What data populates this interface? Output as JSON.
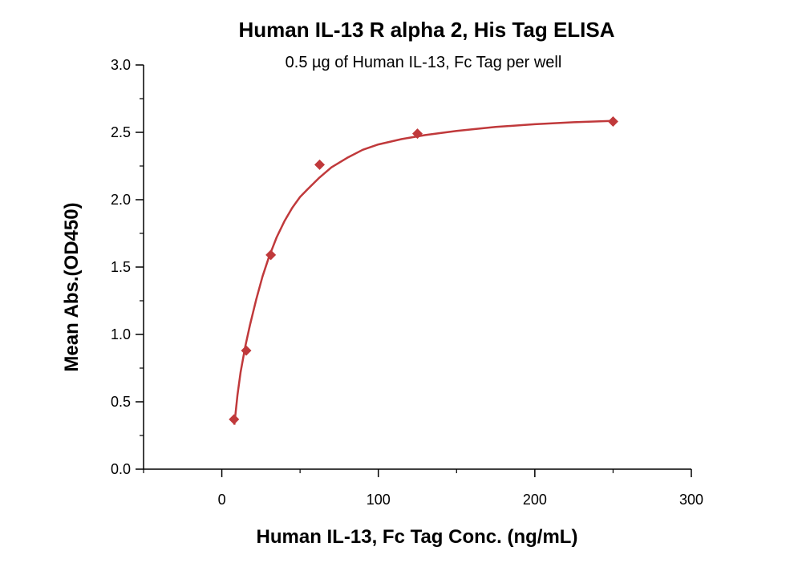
{
  "chart_data": {
    "type": "scatter",
    "title": "Human IL-13 R alpha 2, His Tag ELISA",
    "subtitle": "0.5 µg of Human IL-13, Fc Tag per well",
    "xlabel": "Human IL-13, Fc Tag Conc. (ng/mL)",
    "ylabel": "Mean Abs.(OD450)",
    "xlim": [
      -50,
      300
    ],
    "ylim": [
      0,
      3.0
    ],
    "x_ticks": [
      0,
      100,
      200,
      300
    ],
    "x_tick_labels": [
      "0",
      "100",
      "200",
      "300"
    ],
    "y_ticks": [
      0,
      0.5,
      1.0,
      1.5,
      2.0,
      2.5,
      3.0
    ],
    "y_tick_labels": [
      "0.0",
      "0.5",
      "1.0",
      "1.5",
      "2.0",
      "2.5",
      "3.0"
    ],
    "grid": false,
    "series": [
      {
        "marker": "diamond",
        "color": "#c0393b",
        "x": [
          7.8,
          15.6,
          31.3,
          62.5,
          125,
          250
        ],
        "y": [
          0.37,
          0.88,
          1.59,
          2.26,
          2.49,
          2.58
        ]
      }
    ],
    "fit_curve": {
      "color": "#c0393b",
      "x": [
        8,
        10,
        12,
        15,
        18,
        22,
        26,
        30,
        35,
        40,
        45,
        50,
        55,
        62,
        70,
        80,
        90,
        100,
        115,
        130,
        150,
        175,
        200,
        225,
        250
      ],
      "y": [
        0.33,
        0.55,
        0.72,
        0.91,
        1.07,
        1.26,
        1.43,
        1.57,
        1.72,
        1.84,
        1.94,
        2.02,
        2.08,
        2.16,
        2.24,
        2.31,
        2.37,
        2.41,
        2.45,
        2.48,
        2.51,
        2.54,
        2.56,
        2.575,
        2.585
      ]
    }
  }
}
